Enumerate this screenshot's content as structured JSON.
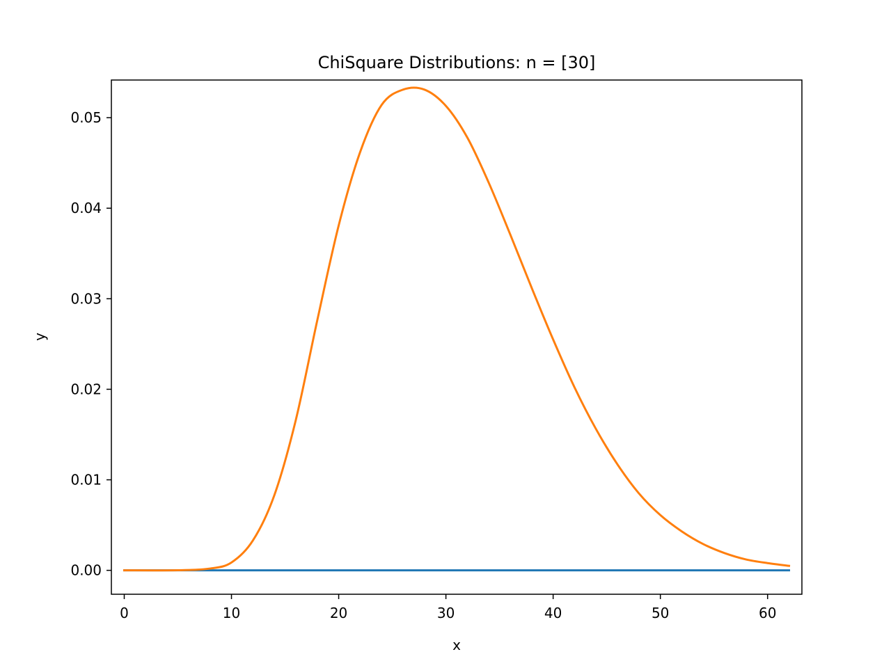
{
  "chart_data": {
    "type": "line",
    "title": "ChiSquare Distributions: n = [30]",
    "xlabel": "x",
    "ylabel": "y",
    "xlim": [
      -1.2,
      63.2
    ],
    "ylim": [
      -0.00264,
      0.05416
    ],
    "grid": false,
    "legend": "none",
    "x_ticks": [
      {
        "value": 0,
        "label": "0"
      },
      {
        "value": 10,
        "label": "10"
      },
      {
        "value": 20,
        "label": "20"
      },
      {
        "value": 30,
        "label": "30"
      },
      {
        "value": 40,
        "label": "40"
      },
      {
        "value": 50,
        "label": "50"
      },
      {
        "value": 60,
        "label": "60"
      }
    ],
    "y_ticks": [
      {
        "value": 0.0,
        "label": "0.00"
      },
      {
        "value": 0.01,
        "label": "0.01"
      },
      {
        "value": 0.02,
        "label": "0.02"
      },
      {
        "value": 0.03,
        "label": "0.03"
      },
      {
        "value": 0.04,
        "label": "0.04"
      },
      {
        "value": 0.05,
        "label": "0.05"
      }
    ],
    "series": [
      {
        "color": "#1f77b4",
        "x": [
          0,
          62
        ],
        "y": [
          0,
          0
        ]
      },
      {
        "color": "#ff7f0e",
        "x": [
          0,
          5,
          8,
          10,
          12,
          14,
          16,
          18,
          20,
          22,
          24,
          26,
          28,
          30,
          32,
          34,
          36,
          38,
          40,
          42,
          44,
          46,
          48,
          50,
          52,
          54,
          56,
          58,
          60,
          62
        ],
        "y": [
          0,
          1e-05,
          0.0002,
          0.00087,
          0.0033,
          0.0083,
          0.0166,
          0.0276,
          0.0381,
          0.0462,
          0.0514,
          0.0531,
          0.0531,
          0.0513,
          0.0478,
          0.0428,
          0.0371,
          0.0312,
          0.0255,
          0.0202,
          0.0156,
          0.0117,
          0.0085,
          0.0061,
          0.0043,
          0.0029,
          0.0019,
          0.0012,
          0.0008,
          0.0005
        ]
      }
    ]
  }
}
